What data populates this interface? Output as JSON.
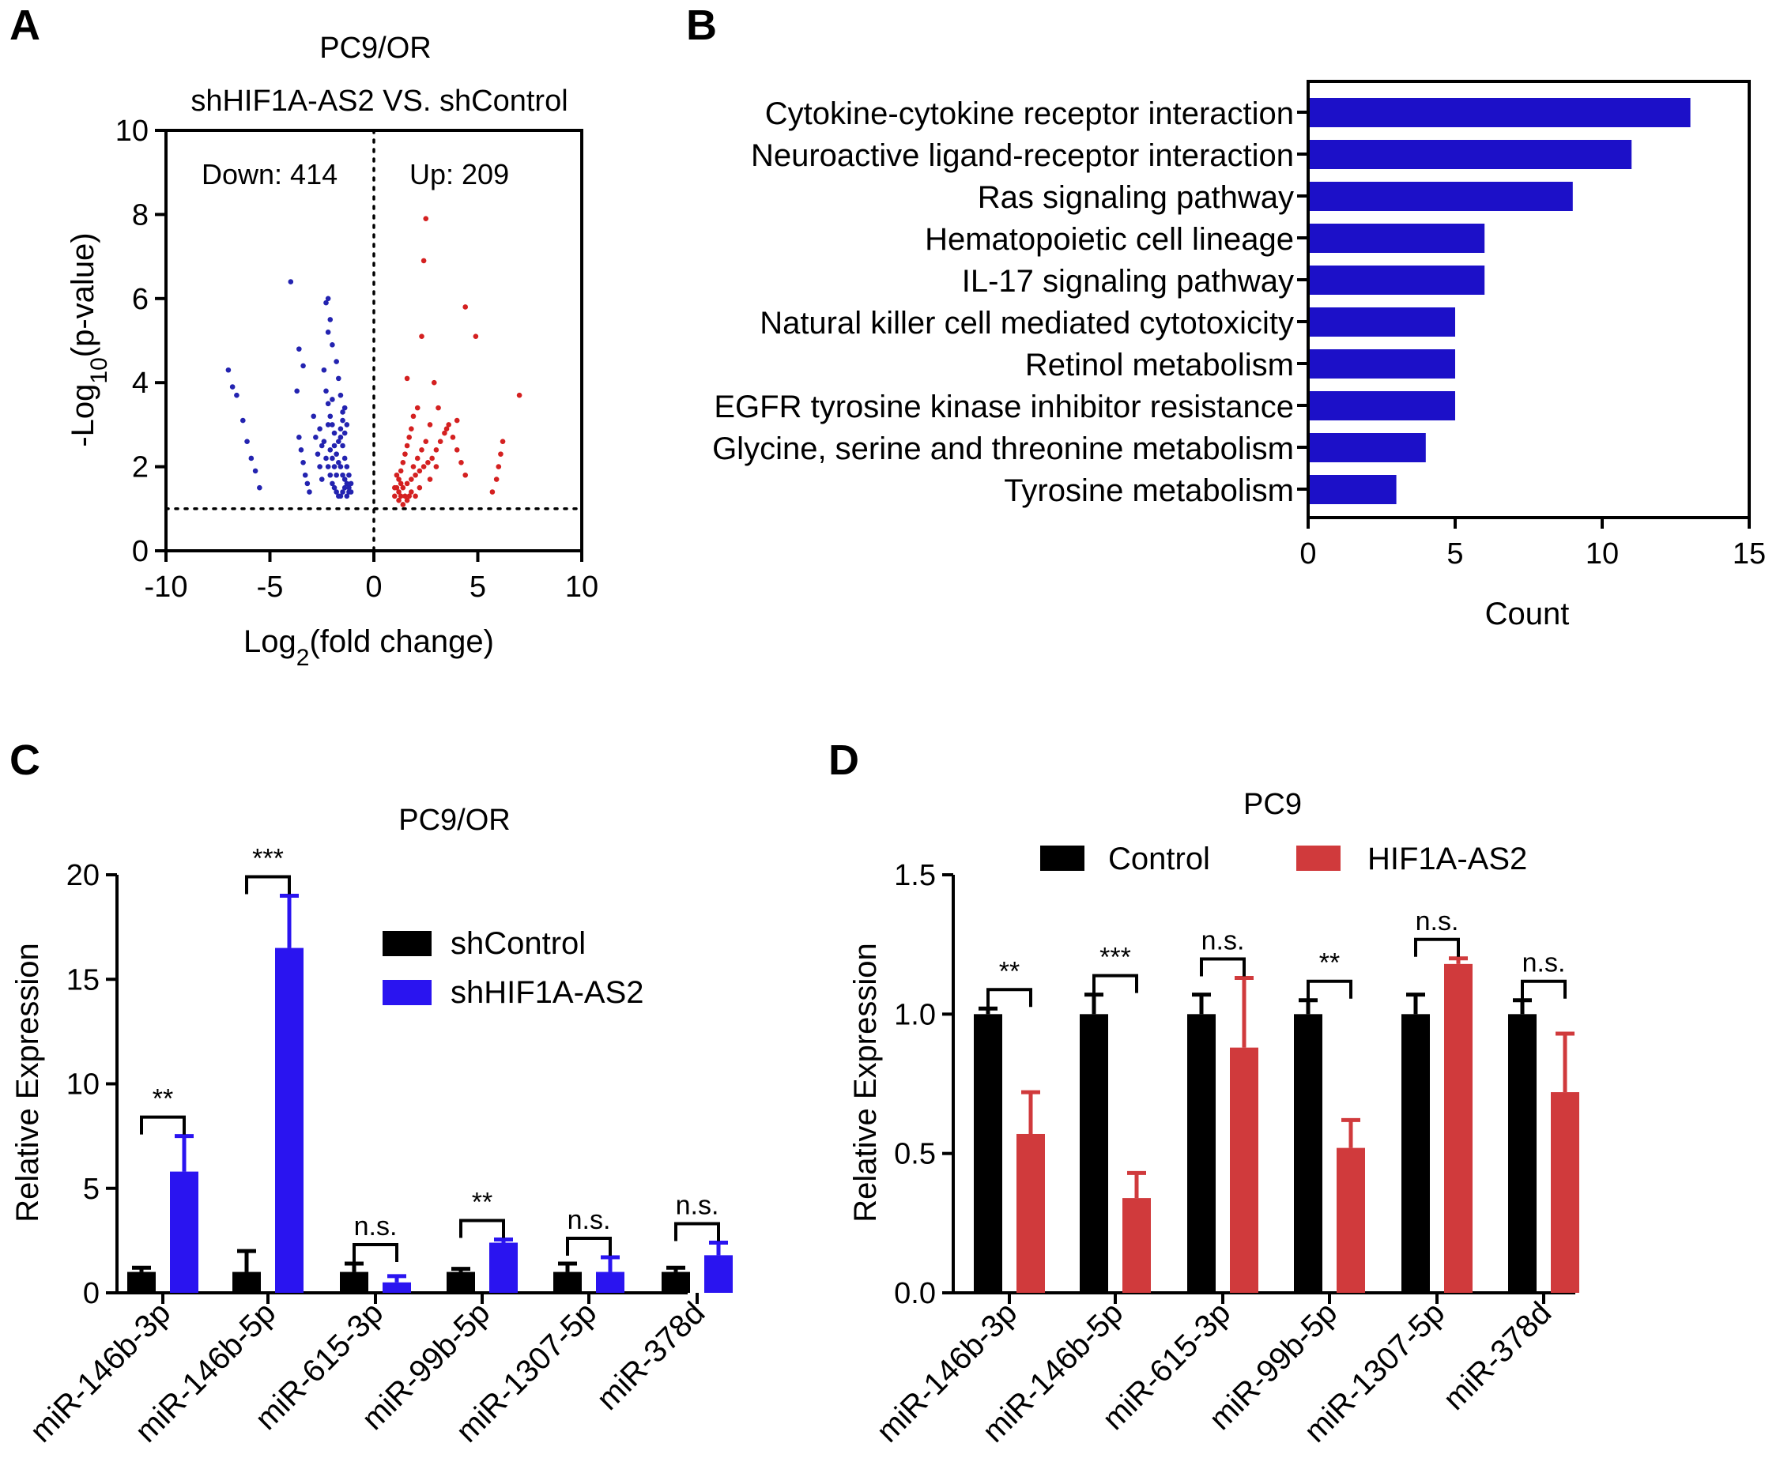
{
  "colors": {
    "down": "#2323b0",
    "up": "#d42020",
    "kegg_bar": "#1c10c8",
    "shControl": "#000000",
    "shHIF1A_AS2": "#2a14f0",
    "Control": "#000000",
    "HIF1A_AS2": "#d03a3c"
  },
  "chart_data": [
    {
      "panel": "A",
      "type": "scatter",
      "title": "PC9/OR",
      "subtitle": "shHIF1A-AS2 VS. shControl",
      "xlabel": "Log",
      "xlabel_sub": "2",
      "xlabel_tail": "(fold change)",
      "ylabel": "-Log",
      "ylabel_sub": "10",
      "ylabel_tail": "(p-value)",
      "xlim": [
        -10,
        10
      ],
      "ylim": [
        0,
        10
      ],
      "xticks": [
        "-10",
        "-5",
        "0",
        "5",
        "10"
      ],
      "yticks": [
        "0",
        "2",
        "4",
        "6",
        "8",
        "10"
      ],
      "annotations": {
        "down": "Down: 414",
        "up": "Up: 209"
      },
      "threshold_y": 1,
      "series": [
        {
          "name": "Down",
          "points": [
            [
              -7,
              4.3
            ],
            [
              -6.8,
              3.9
            ],
            [
              -6.6,
              3.7
            ],
            [
              -6.3,
              3.1
            ],
            [
              -6.1,
              2.6
            ],
            [
              -5.9,
              2.2
            ],
            [
              -5.7,
              1.9
            ],
            [
              -5.5,
              1.5
            ],
            [
              -4.0,
              6.4
            ],
            [
              -3.6,
              4.8
            ],
            [
              -3.4,
              4.4
            ],
            [
              -3.7,
              3.8
            ],
            [
              -3.6,
              2.7
            ],
            [
              -3.5,
              2.4
            ],
            [
              -3.4,
              2.1
            ],
            [
              -3.3,
              1.8
            ],
            [
              -3.2,
              1.6
            ],
            [
              -3.1,
              1.4
            ],
            [
              -2.9,
              3.2
            ],
            [
              -2.8,
              2.7
            ],
            [
              -2.7,
              2.3
            ],
            [
              -2.6,
              2.0
            ],
            [
              -2.5,
              1.7
            ],
            [
              -2.3,
              5.9
            ],
            [
              -2.2,
              6.0
            ],
            [
              -2.1,
              5.5
            ],
            [
              -2.2,
              5.2
            ],
            [
              -2.0,
              4.9
            ],
            [
              -2.4,
              4.3
            ],
            [
              -2.3,
              3.8
            ],
            [
              -2.2,
              3.5
            ],
            [
              -2.1,
              3.2
            ],
            [
              -2.0,
              3.0
            ],
            [
              -1.9,
              2.8
            ],
            [
              -1.8,
              4.5
            ],
            [
              -1.7,
              4.1
            ],
            [
              -1.6,
              3.7
            ],
            [
              -1.5,
              3.3
            ],
            [
              -1.9,
              2.5
            ],
            [
              -1.8,
              2.3
            ],
            [
              -1.7,
              2.1
            ],
            [
              -1.6,
              2.0
            ],
            [
              -1.5,
              1.8
            ],
            [
              -1.4,
              1.7
            ],
            [
              -1.3,
              1.6
            ],
            [
              -1.2,
              1.5
            ],
            [
              -1.1,
              1.4
            ],
            [
              -2.4,
              2.6
            ],
            [
              -2.3,
              2.2
            ],
            [
              -2.2,
              2.0
            ],
            [
              -2.1,
              1.8
            ],
            [
              -2.0,
              1.6
            ],
            [
              -1.9,
              1.5
            ],
            [
              -1.8,
              1.4
            ],
            [
              -1.7,
              1.3
            ],
            [
              -1.6,
              1.3
            ],
            [
              -1.5,
              1.4
            ],
            [
              -1.4,
              1.5
            ],
            [
              -1.3,
              1.3
            ],
            [
              -1.2,
              1.4
            ],
            [
              -1.4,
              2.2
            ],
            [
              -1.3,
              2.0
            ],
            [
              -1.2,
              1.8
            ],
            [
              -1.1,
              1.6
            ],
            [
              -1.6,
              2.7
            ],
            [
              -1.5,
              2.5
            ],
            [
              -1.4,
              2.8
            ],
            [
              -1.3,
              3.0
            ],
            [
              -2.6,
              2.9
            ],
            [
              -2.5,
              2.5
            ],
            [
              -1.8,
              1.8
            ],
            [
              -1.9,
              2.0
            ],
            [
              -2.0,
              2.2
            ],
            [
              -2.1,
              2.4
            ],
            [
              -1.7,
              2.6
            ],
            [
              -1.6,
              2.9
            ],
            [
              -1.5,
              3.1
            ],
            [
              -1.4,
              3.4
            ],
            [
              -2.2,
              3.0
            ],
            [
              -2.0,
              3.6
            ]
          ]
        },
        {
          "name": "Up",
          "points": [
            [
              2.5,
              7.9
            ],
            [
              2.4,
              6.9
            ],
            [
              2.3,
              5.1
            ],
            [
              4.4,
              5.8
            ],
            [
              4.9,
              5.1
            ],
            [
              7.0,
              3.7
            ],
            [
              1.6,
              4.1
            ],
            [
              2.9,
              4.0
            ],
            [
              2.1,
              3.4
            ],
            [
              1.9,
              3.2
            ],
            [
              1.8,
              2.9
            ],
            [
              1.7,
              2.7
            ],
            [
              1.6,
              2.5
            ],
            [
              1.5,
              2.3
            ],
            [
              1.4,
              2.1
            ],
            [
              1.3,
              1.9
            ],
            [
              1.2,
              1.7
            ],
            [
              1.1,
              1.5
            ],
            [
              1.0,
              1.3
            ],
            [
              1.2,
              1.4
            ],
            [
              1.4,
              1.5
            ],
            [
              1.6,
              1.6
            ],
            [
              1.8,
              1.7
            ],
            [
              2.0,
              1.8
            ],
            [
              2.2,
              1.9
            ],
            [
              2.4,
              2.0
            ],
            [
              2.6,
              2.1
            ],
            [
              2.8,
              2.2
            ],
            [
              3.0,
              2.4
            ],
            [
              3.2,
              2.6
            ],
            [
              3.4,
              2.8
            ],
            [
              3.6,
              3.0
            ],
            [
              3.8,
              2.7
            ],
            [
              4.0,
              2.4
            ],
            [
              4.2,
              2.1
            ],
            [
              4.4,
              1.8
            ],
            [
              4.0,
              3.1
            ],
            [
              3.5,
              2.9
            ],
            [
              3.0,
              2.0
            ],
            [
              2.7,
              1.7
            ],
            [
              2.2,
              1.5
            ],
            [
              1.8,
              1.4
            ],
            [
              1.5,
              1.3
            ],
            [
              1.3,
              1.6
            ],
            [
              1.1,
              1.8
            ],
            [
              1.0,
              1.5
            ],
            [
              1.2,
              1.2
            ],
            [
              2.5,
              2.6
            ],
            [
              2.3,
              2.4
            ],
            [
              2.1,
              2.2
            ],
            [
              1.9,
              2.0
            ],
            [
              3.1,
              3.4
            ],
            [
              2.7,
              3.0
            ],
            [
              5.7,
              1.4
            ],
            [
              5.9,
              1.7
            ],
            [
              6.0,
              2.0
            ],
            [
              6.1,
              2.3
            ],
            [
              6.2,
              2.6
            ],
            [
              1.4,
              1.1
            ],
            [
              1.6,
              1.2
            ],
            [
              1.7,
              1.3
            ],
            [
              2.0,
              1.3
            ],
            [
              1.3,
              1.3
            ]
          ]
        }
      ]
    },
    {
      "panel": "B",
      "type": "bar",
      "orientation": "horizontal",
      "xlabel": "Count",
      "xlim": [
        0,
        15
      ],
      "xticks": [
        "0",
        "5",
        "10",
        "15"
      ],
      "categories": [
        "Cytokine-cytokine receptor interaction",
        "Neuroactive ligand-receptor interaction",
        "Ras signaling pathway",
        "Hematopoietic cell lineage",
        "IL-17 signaling pathway",
        "Natural killer cell mediated cytotoxicity",
        "Retinol metabolism",
        "EGFR tyrosine kinase inhibitor resistance",
        "Glycine, serine and threonine metabolism",
        "Tyrosine metabolism"
      ],
      "values": [
        13,
        11,
        9,
        6,
        6,
        5,
        5,
        5,
        4,
        3
      ]
    },
    {
      "panel": "C",
      "type": "bar",
      "title": "PC9/OR",
      "ylabel": "Relative Expression",
      "ylim": [
        0,
        20
      ],
      "yticks": [
        "0",
        "5",
        "10",
        "15",
        "20"
      ],
      "categories": [
        "miR-146b-3p",
        "miR-146b-5p",
        "miR-615-3p",
        "miR-99b-5p",
        "miR-1307-5p",
        "miR-378d"
      ],
      "series": [
        {
          "name": "shControl",
          "values": [
            1.0,
            1.0,
            1.0,
            1.0,
            1.0,
            1.0
          ],
          "errors": [
            0.2,
            1.0,
            0.4,
            0.15,
            0.4,
            0.2
          ]
        },
        {
          "name": "shHIF1A-AS2",
          "values": [
            5.8,
            16.5,
            0.5,
            2.4,
            1.0,
            1.8
          ],
          "errors": [
            1.7,
            2.5,
            0.3,
            0.15,
            0.7,
            0.6
          ]
        }
      ],
      "significance": [
        "**",
        "***",
        "n.s.",
        "**",
        "n.s.",
        "n.s."
      ],
      "legend_position": "right"
    },
    {
      "panel": "D",
      "type": "bar",
      "title": "PC9",
      "ylabel": "Relative Expression",
      "ylim": [
        0,
        1.5
      ],
      "yticks": [
        "0.0",
        "0.5",
        "1.0",
        "1.5"
      ],
      "categories": [
        "miR-146b-3p",
        "miR-146b-5p",
        "miR-615-3p",
        "miR-99b-5p",
        "miR-1307-5p",
        "miR-378d"
      ],
      "series": [
        {
          "name": "Control",
          "values": [
            1.0,
            1.0,
            1.0,
            1.0,
            1.0,
            1.0
          ],
          "errors": [
            0.02,
            0.07,
            0.07,
            0.05,
            0.07,
            0.05
          ]
        },
        {
          "name": "HIF1A-AS2",
          "values": [
            0.57,
            0.34,
            0.88,
            0.52,
            1.18,
            0.72
          ],
          "errors": [
            0.15,
            0.09,
            0.25,
            0.1,
            0.02,
            0.21
          ]
        }
      ],
      "significance": [
        "**",
        "***",
        "n.s.",
        "**",
        "n.s.",
        "n.s."
      ],
      "legend_position": "top"
    }
  ],
  "panels": {
    "a": "A",
    "b": "B",
    "c": "C",
    "d": "D"
  }
}
